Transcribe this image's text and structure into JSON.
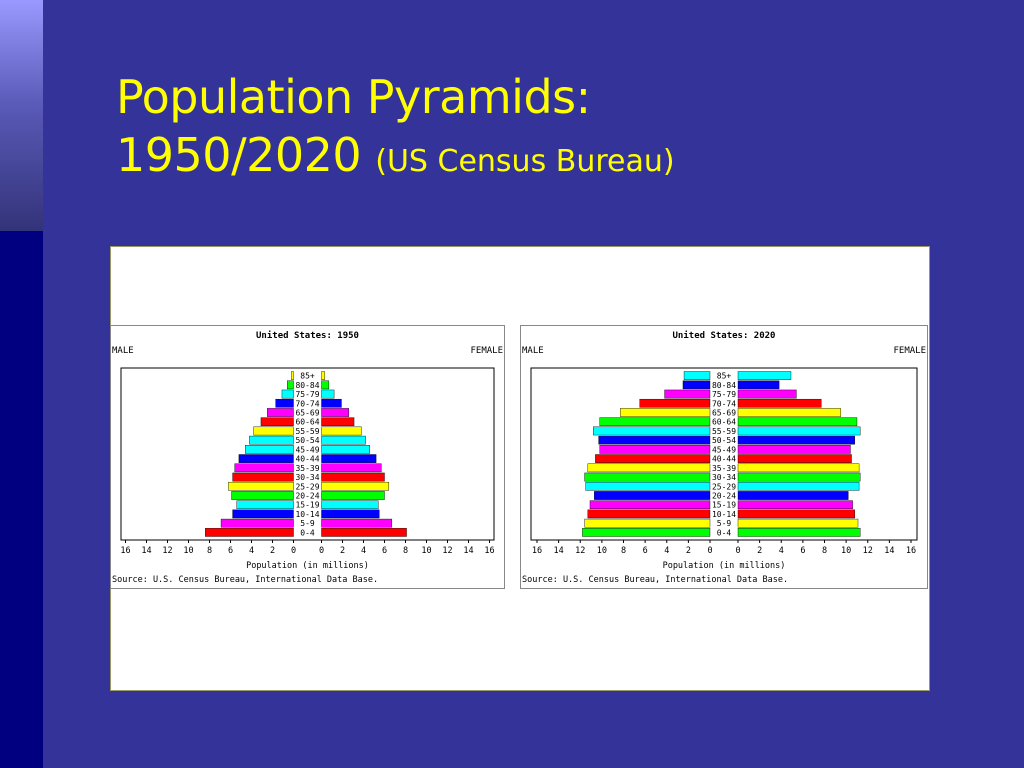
{
  "slide": {
    "title_line1": "Population Pyramids:",
    "title_line2": "1950/2020",
    "title_source": "(US Census Bureau)"
  },
  "colors": {
    "background": "#333399",
    "title": "#ffff00",
    "bar_cycle": [
      "#ff0000",
      "#ff00ff",
      "#0000ff",
      "#00ffff",
      "#ffff00",
      "#00ff00"
    ]
  },
  "chart_data": [
    {
      "type": "bar",
      "orientation": "horizontal-pyramid",
      "title": "United States: 1950",
      "left_label": "MALE",
      "right_label": "FEMALE",
      "xlabel": "Population (in millions)",
      "source": "Source: U.S. Census Bureau, International Data Base.",
      "xlim": [
        0,
        16
      ],
      "ticks": [
        16,
        14,
        12,
        10,
        8,
        6,
        4,
        2,
        0
      ],
      "ticks_right": [
        0,
        2,
        4,
        6,
        8,
        10,
        12,
        14,
        16
      ],
      "categories": [
        "85+",
        "80-84",
        "75-79",
        "70-74",
        "65-69",
        "60-64",
        "55-59",
        "50-54",
        "45-49",
        "40-44",
        "35-39",
        "30-34",
        "25-29",
        "20-24",
        "15-19",
        "10-14",
        "5-9",
        "0-4"
      ],
      "series": [
        {
          "name": "MALE",
          "values": [
            0.2,
            0.6,
            1.1,
            1.7,
            2.5,
            3.1,
            3.8,
            4.2,
            4.6,
            5.2,
            5.6,
            5.8,
            6.2,
            5.9,
            5.4,
            5.8,
            6.9,
            8.4
          ]
        },
        {
          "name": "FEMALE",
          "values": [
            0.3,
            0.7,
            1.2,
            1.9,
            2.6,
            3.1,
            3.8,
            4.2,
            4.6,
            5.2,
            5.7,
            6.0,
            6.4,
            6.0,
            5.4,
            5.5,
            6.7,
            8.1
          ]
        }
      ],
      "bar_colors": [
        "#ffff00",
        "#00ff00",
        "#00ffff",
        "#0000ff",
        "#ff00ff",
        "#ff0000",
        "#ffff00",
        "#00ffff",
        "#00ffff",
        "#0000ff",
        "#ff00ff",
        "#ff0000",
        "#ffff00",
        "#00ff00",
        "#00ffff",
        "#0000ff",
        "#ff00ff",
        "#ff0000"
      ]
    },
    {
      "type": "bar",
      "orientation": "horizontal-pyramid",
      "title": "United States: 2020",
      "left_label": "MALE",
      "right_label": "FEMALE",
      "xlabel": "Population (in millions)",
      "source": "Source: U.S. Census Bureau, International Data Base.",
      "xlim": [
        0,
        16
      ],
      "ticks": [
        16,
        14,
        12,
        10,
        8,
        6,
        4,
        2,
        0
      ],
      "ticks_right": [
        0,
        2,
        4,
        6,
        8,
        10,
        12,
        14,
        16
      ],
      "categories": [
        "85+",
        "80-84",
        "75-79",
        "70-74",
        "65-69",
        "60-64",
        "55-59",
        "50-54",
        "45-49",
        "40-44",
        "35-39",
        "30-34",
        "25-29",
        "20-24",
        "15-19",
        "10-14",
        "5-9",
        "0-4"
      ],
      "series": [
        {
          "name": "MALE",
          "values": [
            2.4,
            2.5,
            4.2,
            6.5,
            8.3,
            10.2,
            10.8,
            10.3,
            10.2,
            10.6,
            11.3,
            11.6,
            11.5,
            10.7,
            11.1,
            11.3,
            11.6,
            11.8
          ]
        },
        {
          "name": "FEMALE",
          "values": [
            4.9,
            3.8,
            5.4,
            7.7,
            9.5,
            11.0,
            11.3,
            10.8,
            10.4,
            10.5,
            11.2,
            11.3,
            11.2,
            10.2,
            10.6,
            10.8,
            11.1,
            11.3
          ]
        }
      ],
      "bar_colors": [
        "#00ffff",
        "#0000ff",
        "#ff00ff",
        "#ff0000",
        "#ffff00",
        "#00ff00",
        "#00ffff",
        "#0000ff",
        "#ff00ff",
        "#ff0000",
        "#ffff00",
        "#00ff00",
        "#00ffff",
        "#0000ff",
        "#ff00ff",
        "#ff0000",
        "#ffff00",
        "#00ff00"
      ]
    }
  ]
}
